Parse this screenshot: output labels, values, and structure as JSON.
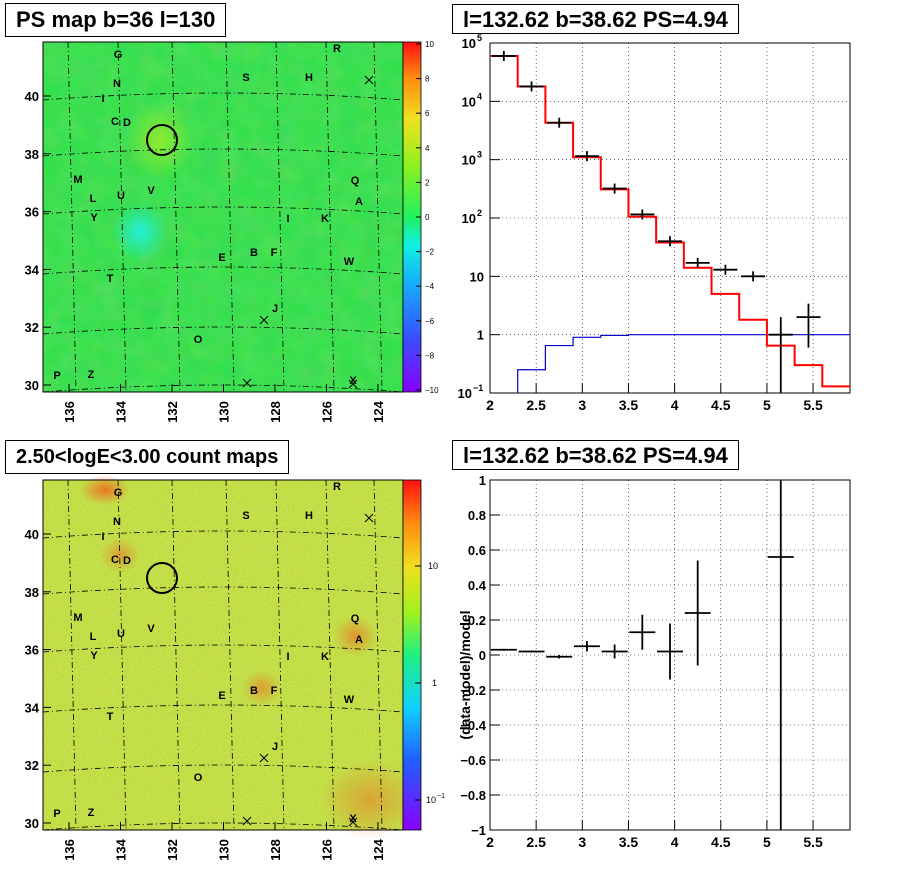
{
  "panels": {
    "top_left_title": "PS map b=36 l=130",
    "top_right_title": "l=132.62 b=38.62 PS=4.94",
    "bottom_left_title": "2.50<logE<3.00 count maps",
    "bottom_right_title": "l=132.62 b=38.62 PS=4.94"
  },
  "colors": {
    "model": "#ff0000",
    "background_model": "#0000cc",
    "data": "#000000",
    "map_base": "#2ee04a",
    "count_base": "#c8e640"
  },
  "chart_data": [
    {
      "type": "heatmap",
      "title": "PS map b=36 l=130",
      "x_ticks": [
        "136",
        "134",
        "132",
        "130",
        "128",
        "126",
        "124"
      ],
      "y_ticks": [
        "30",
        "32",
        "34",
        "36",
        "38",
        "40"
      ],
      "colorbar_ticks": [
        "10",
        "8",
        "6",
        "4",
        "2",
        "0",
        "−2",
        "−4",
        "−6",
        "−8",
        "−10"
      ],
      "zlim": [
        -10,
        10
      ],
      "sources": [
        "G",
        "R",
        "N",
        "S",
        "H",
        "I",
        "C",
        "D",
        "M",
        "Q",
        "V",
        "L",
        "U",
        "A",
        "Y",
        "I",
        "K",
        "E",
        "B",
        "F",
        "W",
        "T",
        "J",
        "O",
        "P",
        "Z",
        "X"
      ],
      "crosses": 4,
      "circle": "l=132.62 b=38.62"
    },
    {
      "type": "line",
      "title": "l=132.62 b=38.62 PS=4.94",
      "x_ticks": [
        "2",
        "2.5",
        "3",
        "3.5",
        "4",
        "4.5",
        "5",
        "5.5"
      ],
      "y_ticks": [
        "10",
        "1",
        "10"
      ],
      "y_ticks_exp": [
        "5",
        "4",
        "3",
        "2"
      ],
      "y_tick_minus": "−1",
      "xlim": [
        2,
        5.9
      ],
      "ylim": [
        0.1,
        100000
      ],
      "log_y": true,
      "bin_edges": [
        2.0,
        2.3,
        2.6,
        2.9,
        3.2,
        3.5,
        3.8,
        4.1,
        4.4,
        4.7,
        5.0,
        5.3,
        5.6,
        5.9
      ],
      "series": [
        {
          "values": [
            60000,
            18000,
            4300,
            1100,
            310,
            105,
            38,
            14,
            5,
            1.8,
            0.65,
            0.3,
            0.13
          ]
        },
        {
          "values": [
            0.1,
            0.25,
            0.65,
            0.9,
            0.97,
            1.0,
            1.0,
            1.0,
            1.0,
            1.0,
            1.0,
            1.0,
            1.0
          ]
        },
        {
          "points": [
            {
              "x": 2.15,
              "y": 60000
            },
            {
              "x": 2.45,
              "y": 18000
            },
            {
              "x": 2.75,
              "y": 4300
            },
            {
              "x": 3.05,
              "y": 1150
            },
            {
              "x": 3.35,
              "y": 320
            },
            {
              "x": 3.65,
              "y": 115
            },
            {
              "x": 3.95,
              "y": 40
            },
            {
              "x": 4.25,
              "y": 17
            },
            {
              "x": 4.55,
              "y": 13
            },
            {
              "x": 4.85,
              "y": 10
            },
            {
              "x": 5.15,
              "y": 1.0,
              "lo": 0.1,
              "hi": 2.0
            },
            {
              "x": 5.45,
              "y": 2.0,
              "lo": 0.6,
              "hi": 3.4
            }
          ]
        }
      ],
      "grid": true
    },
    {
      "type": "heatmap",
      "title": "2.50<logE<3.00 count maps",
      "x_ticks": [
        "136",
        "134",
        "132",
        "130",
        "128",
        "126",
        "124"
      ],
      "y_ticks": [
        "30",
        "32",
        "34",
        "36",
        "38",
        "40"
      ],
      "colorbar_ticks": [
        "10",
        "1",
        "10"
      ],
      "colorbar_tick_exp": "−1",
      "log_z": true
    },
    {
      "type": "scatter",
      "title": "l=132.62 b=38.62 PS=4.94",
      "ylabel": "(data-model)/model",
      "x_ticks": [
        "2",
        "2.5",
        "3",
        "3.5",
        "4",
        "4.5",
        "5",
        "5.5"
      ],
      "y_ticks": [
        "1",
        "0.8",
        "0.6",
        "0.4",
        "0.2",
        "0",
        "−0.2",
        "−0.4",
        "−0.6",
        "−0.8",
        "−1"
      ],
      "xlim": [
        2,
        5.9
      ],
      "ylim": [
        -1,
        1
      ],
      "points": [
        {
          "x": 2.15,
          "y": 0.03,
          "err": 0.005
        },
        {
          "x": 2.45,
          "y": 0.02,
          "err": 0.006
        },
        {
          "x": 2.75,
          "y": -0.01,
          "err": 0.01
        },
        {
          "x": 3.05,
          "y": 0.05,
          "err": 0.03
        },
        {
          "x": 3.35,
          "y": 0.02,
          "err": 0.04
        },
        {
          "x": 3.65,
          "y": 0.13,
          "err": 0.1
        },
        {
          "x": 3.95,
          "y": 0.02,
          "err": 0.16
        },
        {
          "x": 4.25,
          "y": 0.24,
          "err": 0.3
        },
        {
          "x": 5.15,
          "y": 0.56,
          "err": 2.0
        }
      ],
      "grid": true
    }
  ]
}
